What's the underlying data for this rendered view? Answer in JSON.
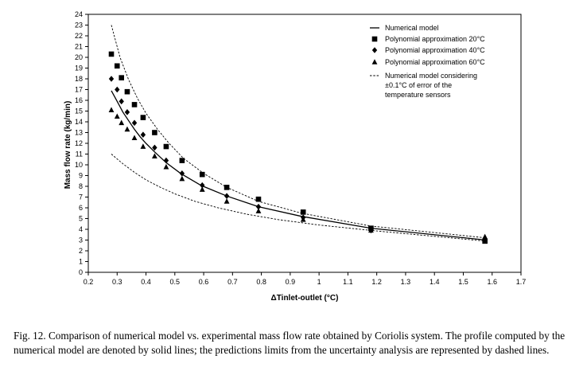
{
  "chart_data": {
    "type": "scatter",
    "title": "",
    "xlabel": "ΔTinlet-outlet (°C)",
    "ylabel": "Mass flow rate (kg/min)",
    "xlim": [
      0.2,
      1.7
    ],
    "ylim": [
      0,
      24
    ],
    "xticks": [
      "0.2",
      "0.3",
      "0.4",
      "0.5",
      "0.6",
      "0.7",
      "0.8",
      "0.9",
      "1",
      "1.1",
      "1.2",
      "1.3",
      "1.4",
      "1.5",
      "1.6",
      "1.7"
    ],
    "yticks": [
      "0",
      "1",
      "2",
      "3",
      "4",
      "5",
      "6",
      "7",
      "8",
      "9",
      "10",
      "11",
      "12",
      "13",
      "14",
      "15",
      "16",
      "17",
      "18",
      "19",
      "20",
      "21",
      "22",
      "23",
      "24"
    ],
    "grid": false,
    "legend_position": "top-right",
    "series": [
      {
        "name": "Numerical model",
        "kind": "line",
        "style": "solid",
        "x": [
          0.28,
          0.3,
          0.32,
          0.34,
          0.36,
          0.38,
          0.4,
          0.43,
          0.47,
          0.52,
          0.59,
          0.68,
          0.79,
          0.94,
          1.18,
          1.58
        ],
        "y": [
          16.9,
          15.9,
          14.9,
          14.1,
          13.3,
          12.6,
          12.0,
          11.2,
          10.2,
          9.2,
          8.1,
          7.1,
          6.1,
          5.2,
          4.1,
          3.0
        ]
      },
      {
        "name": "Polynomial approximation 20°C",
        "kind": "marker",
        "marker": "square",
        "x": [
          0.28,
          0.3,
          0.315,
          0.335,
          0.36,
          0.39,
          0.43,
          0.47,
          0.525,
          0.595,
          0.68,
          0.79,
          0.945,
          1.18,
          1.575
        ],
        "y": [
          20.3,
          19.2,
          18.1,
          16.8,
          15.6,
          14.4,
          13.0,
          11.7,
          10.4,
          9.1,
          7.9,
          6.8,
          5.6,
          4.1,
          2.9
        ]
      },
      {
        "name": "Polynomial approximation 40°C",
        "kind": "marker",
        "marker": "diamond",
        "x": [
          0.28,
          0.3,
          0.315,
          0.335,
          0.36,
          0.39,
          0.43,
          0.47,
          0.525,
          0.595,
          0.68,
          0.79,
          0.945,
          1.18,
          1.575
        ],
        "y": [
          18.0,
          17.0,
          15.9,
          14.9,
          13.9,
          12.8,
          11.6,
          10.4,
          9.2,
          8.1,
          7.1,
          6.1,
          5.1,
          3.9,
          3.1
        ]
      },
      {
        "name": "Polynomial approximation 60°C",
        "kind": "marker",
        "marker": "triangle",
        "x": [
          0.28,
          0.3,
          0.315,
          0.335,
          0.36,
          0.39,
          0.43,
          0.47,
          0.525,
          0.595,
          0.68,
          0.79,
          0.945,
          1.18,
          1.575
        ],
        "y": [
          15.1,
          14.5,
          13.9,
          13.3,
          12.5,
          11.7,
          10.8,
          9.8,
          8.7,
          7.7,
          6.6,
          5.7,
          4.9,
          3.9,
          3.3
        ]
      },
      {
        "name": "Numerical model considering ±0.1°C of error of the temperature sensors",
        "kind": "line",
        "style": "dashed",
        "curves": [
          {
            "x": [
              0.28,
              0.31,
              0.34,
              0.37,
              0.4,
              0.44,
              0.48,
              0.53,
              0.6,
              0.68,
              0.79,
              0.94,
              1.18,
              1.58
            ],
            "y": [
              23.0,
              20.0,
              17.9,
              16.2,
              14.8,
              13.3,
              12.0,
              10.6,
              9.2,
              7.9,
              6.6,
              5.5,
              4.3,
              3.2
            ]
          },
          {
            "x": [
              0.28,
              0.32,
              0.36,
              0.4,
              0.45,
              0.5,
              0.57,
              0.65,
              0.75,
              0.86,
              1.0,
              1.18,
              1.58
            ],
            "y": [
              11.0,
              10.1,
              9.3,
              8.6,
              7.9,
              7.3,
              6.6,
              6.0,
              5.4,
              4.9,
              4.4,
              3.9,
              2.9
            ]
          }
        ]
      }
    ],
    "legend": [
      "Numerical model",
      "Polynomial approximation 20°C",
      "Polynomial approximation 40°C",
      "Polynomial approximation 60°C",
      [
        "Numerical model considering",
        "±0.1°C of error of the",
        "temperature sensors"
      ]
    ]
  },
  "caption": "Fig. 12. Comparison of numerical model vs. experimental mass flow rate obtained by Coriolis system. The profile computed by the numerical model are denoted by solid lines; the predictions limits from the uncertainty analysis are represented by dashed lines."
}
